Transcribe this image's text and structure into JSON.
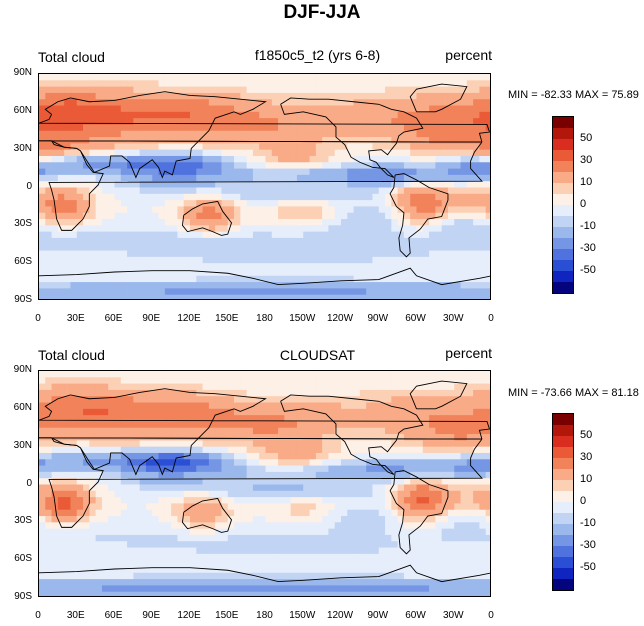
{
  "figure": {
    "title": "DJF-JJA"
  },
  "panels": [
    {
      "label_left": "Total cloud",
      "label_center": "f1850c5_t2 (yrs 6-8)",
      "label_right": "percent",
      "stats": "MIN = -82.33 MAX =  75.89"
    },
    {
      "label_left": "Total cloud",
      "label_center": "CLOUDSAT",
      "label_right": "percent",
      "stats": "MIN = -73.66 MAX =  81.18"
    }
  ],
  "lat_labels": [
    "90N",
    "60N",
    "30N",
    "0",
    "30S",
    "60S",
    "90S"
  ],
  "lon_labels": [
    "0",
    "30E",
    "60E",
    "90E",
    "120E",
    "150E",
    "180",
    "150W",
    "120W",
    "90W",
    "60W",
    "30W",
    "0"
  ],
  "colorbar": {
    "levels": [
      "-60",
      "-50",
      "-40",
      "-30",
      "-20",
      "-10",
      "-5",
      "0",
      "5",
      "10",
      "20",
      "30",
      "40",
      "50",
      "60"
    ],
    "tick_labels": [
      "50",
      "30",
      "10",
      "0",
      "-10",
      "-30",
      "-50"
    ],
    "colors_top_to_bottom": [
      "#7a0000",
      "#b3160a",
      "#d92d1f",
      "#ea5a36",
      "#f2825a",
      "#f8ab86",
      "#fcd0b4",
      "#fdf0e6",
      "#e6eefb",
      "#c1d4f3",
      "#9bb8ec",
      "#7596e4",
      "#4f72de",
      "#2a4fd4",
      "#1024bf",
      "#04047f"
    ]
  }
}
